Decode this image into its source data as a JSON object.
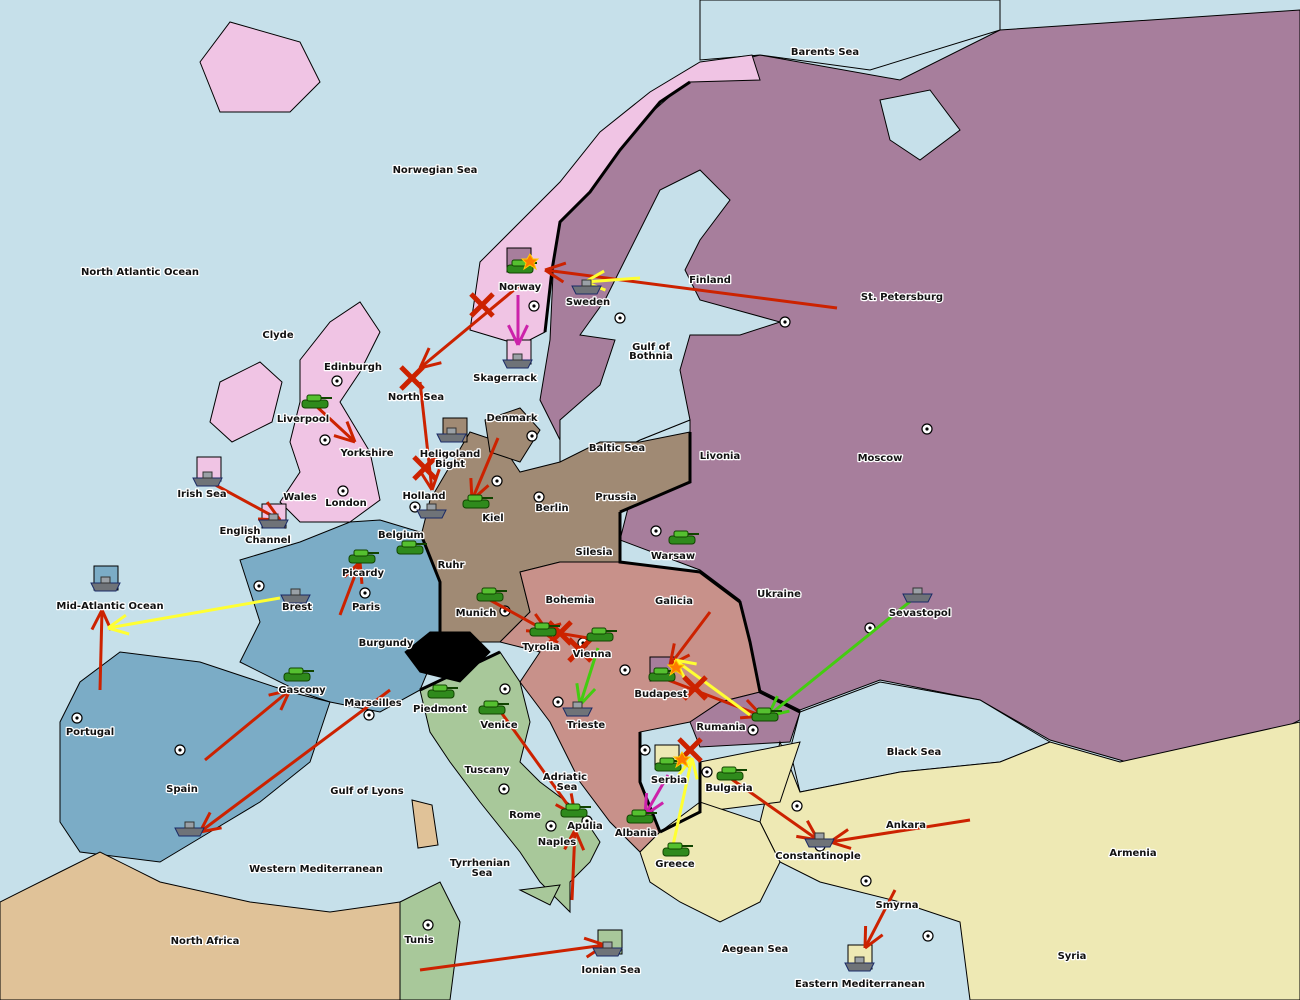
{
  "colors": {
    "sea": "#c6e0ea",
    "england": "#f0c4e4",
    "russia": "#a77e9c",
    "germany": "#a08a74",
    "austria": "#c8918a",
    "france": "#7bacc6",
    "italy": "#a8c89a",
    "turkey": "#eee9b4",
    "neutral_africa": "#e0c298",
    "switzerland": "#000000",
    "order_red": "#cc2200",
    "order_yellow": "#ffff33",
    "order_green": "#44cc11",
    "order_magenta": "#cc22aa"
  },
  "labels": [
    "Barents Sea",
    "Norwegian Sea",
    "North Atlantic Ocean",
    "Clyde",
    "Edinburgh",
    "North Sea",
    "Skagerrack",
    "Denmark",
    "Baltic Sea",
    "Gulf of",
    "Bothnia",
    "Finland",
    "St. Petersburg",
    "Norway",
    "Sweden",
    "Livonia",
    "Moscow",
    "Prussia",
    "Berlin",
    "Kiel",
    "Heligoland",
    "Bight",
    "Holland",
    "Liverpool",
    "Yorkshire",
    "Wales",
    "London",
    "Irish Sea",
    "English",
    "Channel",
    "Belgium",
    "Ruhr",
    "Silesia",
    "Warsaw",
    "Ukraine",
    "Galicia",
    "Bohemia",
    "Munich",
    "Tyrolia",
    "Vienna",
    "Budapest",
    "Rumania",
    "Trieste",
    "Serbia",
    "Bulgaria",
    "Albania",
    "Greece",
    "Sevastopol",
    "Black Sea",
    "Ankara",
    "Constantinople",
    "Armenia",
    "Smyrna",
    "Syria",
    "Eastern Mediterranean",
    "Aegean Sea",
    "Ionian Sea",
    "Tunis",
    "North Africa",
    "Western Mediterranean",
    "Tyrrhenian",
    "Sea",
    "Naples",
    "Rome",
    "Apulia",
    "Adriatic",
    "Sea",
    "Tuscany",
    "Venice",
    "Piedmont",
    "Marseilles",
    "Gulf of Lyons",
    "Spain",
    "Portugal",
    "Gascony",
    "Burgundy",
    "Paris",
    "Picardy",
    "Brest",
    "Mid-Atlantic Ocean"
  ],
  "units": [
    {
      "type": "army",
      "icon": "tank-icon"
    },
    {
      "type": "army",
      "icon": "tank-icon"
    },
    {
      "type": "army",
      "icon": "tank-icon"
    },
    {
      "type": "army",
      "icon": "tank-icon"
    },
    {
      "type": "army",
      "icon": "tank-icon"
    },
    {
      "type": "army",
      "icon": "tank-icon"
    },
    {
      "type": "army",
      "icon": "tank-icon"
    },
    {
      "type": "army",
      "icon": "tank-icon"
    },
    {
      "type": "army",
      "icon": "tank-icon"
    },
    {
      "type": "army",
      "icon": "tank-icon"
    },
    {
      "type": "army",
      "icon": "tank-icon"
    },
    {
      "type": "army",
      "icon": "tank-icon"
    },
    {
      "type": "army",
      "icon": "tank-icon"
    },
    {
      "type": "army",
      "icon": "tank-icon"
    },
    {
      "type": "army",
      "icon": "tank-icon"
    },
    {
      "type": "army",
      "icon": "tank-icon"
    },
    {
      "type": "army",
      "icon": "tank-icon"
    },
    {
      "type": "army",
      "icon": "tank-icon"
    },
    {
      "type": "army",
      "icon": "tank-icon"
    },
    {
      "type": "fleet",
      "icon": "ship-icon"
    },
    {
      "type": "fleet",
      "icon": "ship-icon"
    },
    {
      "type": "fleet",
      "icon": "ship-icon"
    },
    {
      "type": "fleet",
      "icon": "ship-icon"
    },
    {
      "type": "fleet",
      "icon": "ship-icon"
    },
    {
      "type": "fleet",
      "icon": "ship-icon"
    },
    {
      "type": "fleet",
      "icon": "ship-icon"
    },
    {
      "type": "fleet",
      "icon": "ship-icon"
    },
    {
      "type": "fleet",
      "icon": "ship-icon"
    },
    {
      "type": "fleet",
      "icon": "ship-icon"
    },
    {
      "type": "fleet",
      "icon": "ship-icon"
    },
    {
      "type": "fleet",
      "icon": "ship-icon"
    },
    {
      "type": "fleet",
      "icon": "ship-icon"
    },
    {
      "type": "fleet",
      "icon": "ship-icon"
    }
  ]
}
